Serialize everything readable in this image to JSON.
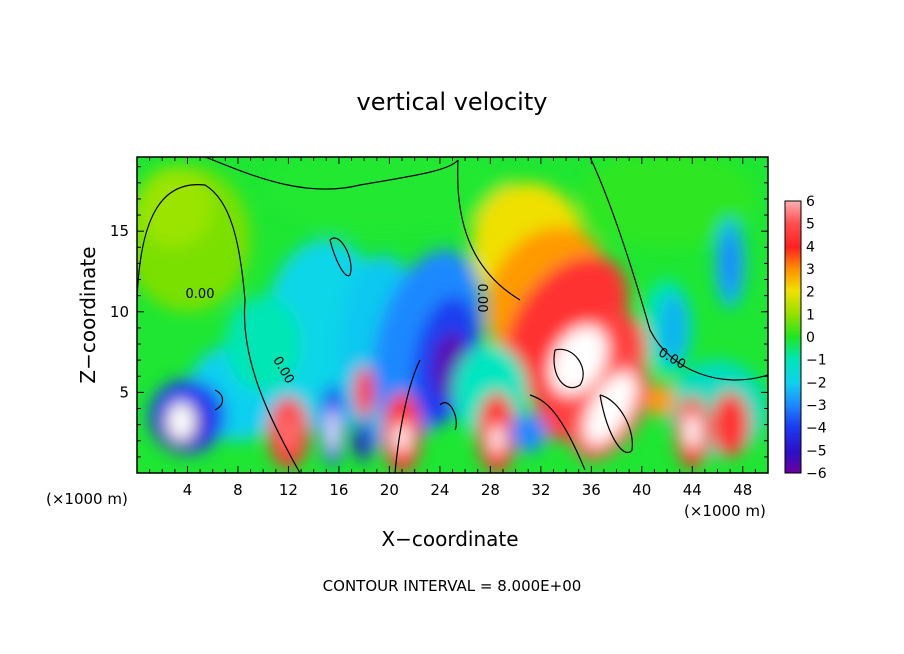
{
  "chart_data": {
    "type": "heatmap",
    "title": "vertical velocity",
    "xlabel": "X−coordinate",
    "ylabel": "Z−coordinate",
    "x_unit_label": "(×1000 m)",
    "xlim": [
      0,
      50
    ],
    "ylim": [
      0,
      19.6
    ],
    "x_ticks": [
      4,
      8,
      12,
      16,
      20,
      24,
      28,
      32,
      36,
      40,
      44,
      48
    ],
    "y_ticks": [
      5,
      10,
      15
    ],
    "colorbar": {
      "ticks": [
        6,
        5,
        4,
        3,
        2,
        1,
        0,
        -1,
        -2,
        -3,
        -4,
        -5,
        -6
      ],
      "range": [
        -6,
        6
      ],
      "above_range_color": "#ffffff"
    },
    "contour_labels": [
      "0.00",
      "0.00",
      "0.00",
      "0.00"
    ],
    "footnote": "CONTOUR INTERVAL = 8.000E+00",
    "field_features": [
      {
        "x": 33,
        "z": 11,
        "value": 5.5,
        "note": "strong updraft plume, tilted"
      },
      {
        "x": 36.5,
        "z": 4.5,
        "value": 8,
        "note": "updraft core exceeding colorbar (white)"
      },
      {
        "x": 25,
        "z": 6.5,
        "value": -7,
        "note": "downdraft core (purple/white)"
      },
      {
        "x": 3.5,
        "z": 3,
        "value": -7,
        "note": "downdraft core"
      },
      {
        "x": 15.5,
        "z": 3,
        "value": -6,
        "note": "downdraft core"
      },
      {
        "x": 4,
        "z": 14,
        "value": 1,
        "note": "weak updraft region"
      },
      {
        "x": 44,
        "z": 2.5,
        "value": 6,
        "note": "updraft cell"
      },
      {
        "x": 21,
        "z": 2.5,
        "value": 6,
        "note": "updraft cell"
      },
      {
        "x": 28.5,
        "z": 2,
        "value": 6,
        "note": "updraft cell"
      },
      {
        "x": 12,
        "z": 2.5,
        "value": 4,
        "note": "updraft cell"
      }
    ]
  },
  "colors": {
    "scale": [
      "#6a00a0",
      "#2a10c8",
      "#1c3cf0",
      "#1e88ff",
      "#10d0f0",
      "#00e6b4",
      "#1ee632",
      "#60e000",
      "#b0e800",
      "#f0e000",
      "#ff9a00",
      "#ff3030",
      "#ff5050",
      "#ffb0b0"
    ]
  }
}
